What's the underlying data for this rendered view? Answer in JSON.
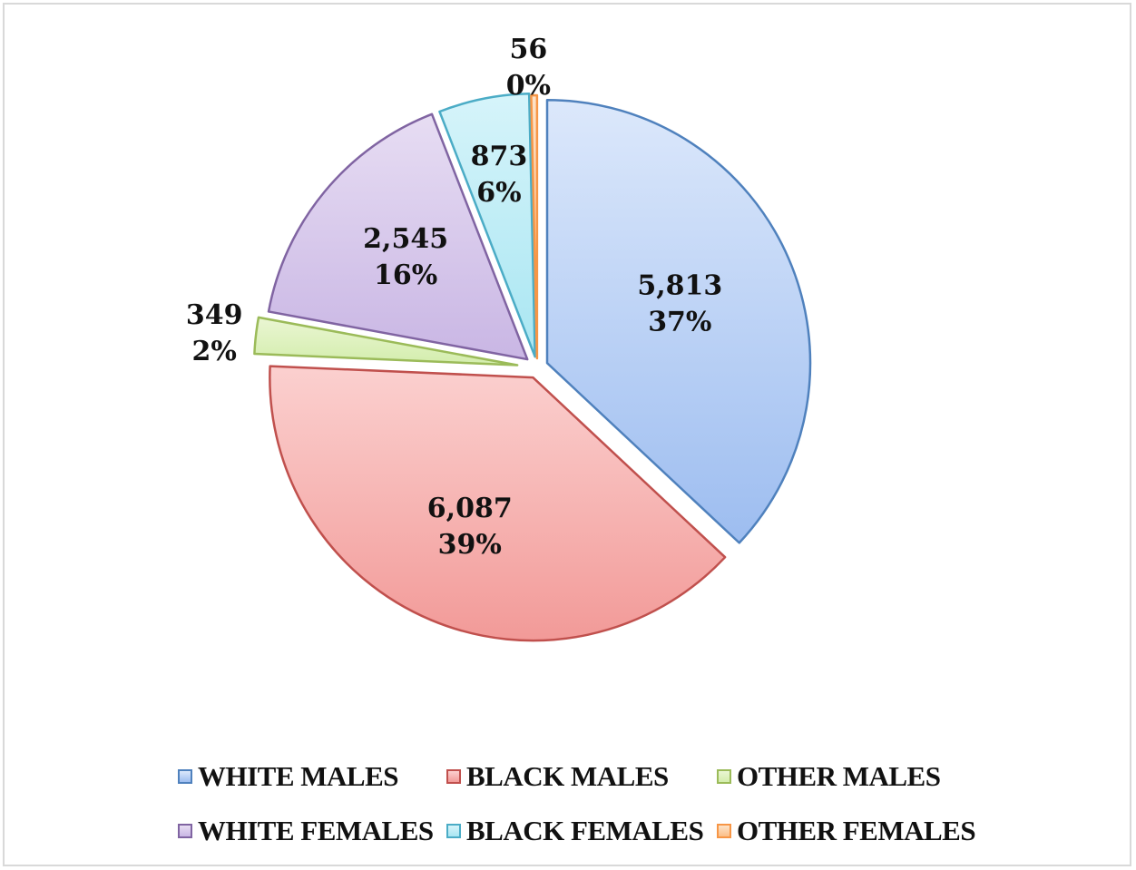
{
  "chart_data": {
    "type": "pie",
    "title": "",
    "slices": [
      {
        "name": "WHITE MALES",
        "value": 5813,
        "value_label": "5,813",
        "percent_label": "37%",
        "fill_top": "#dce8fb",
        "fill_bottom": "#9dbdf0",
        "stroke": "#4f81bd"
      },
      {
        "name": "BLACK MALES",
        "value": 6087,
        "value_label": "6,087",
        "percent_label": "39%",
        "fill_top": "#fbd0cf",
        "fill_bottom": "#f29a98",
        "stroke": "#c0504d"
      },
      {
        "name": "OTHER MALES",
        "value": 349,
        "value_label": "349",
        "percent_label": "2%",
        "fill_top": "#eaf6d3",
        "fill_bottom": "#d3edac",
        "stroke": "#9bbb59"
      },
      {
        "name": "WHITE FEMALES",
        "value": 2545,
        "value_label": "2,545",
        "percent_label": "16%",
        "fill_top": "#e7ddf3",
        "fill_bottom": "#c9b6e4",
        "stroke": "#8064a2"
      },
      {
        "name": "BLACK FEMALES",
        "value": 873,
        "value_label": "873",
        "percent_label": "6%",
        "fill_top": "#d6f4fa",
        "fill_bottom": "#a9e6f2",
        "stroke": "#4bacc6"
      },
      {
        "name": "OTHER FEMALES",
        "value": 56,
        "value_label": "56",
        "percent_label": "0%",
        "fill_top": "#fde2c8",
        "fill_bottom": "#fbbf88",
        "stroke": "#f79646"
      }
    ],
    "legend_position": "bottom",
    "exploded": true
  }
}
